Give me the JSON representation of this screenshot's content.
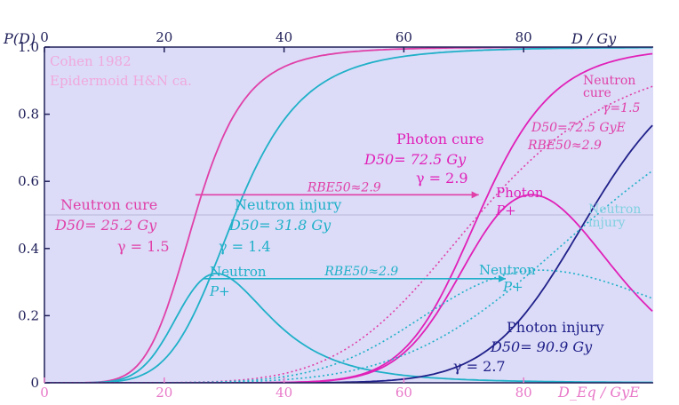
{
  "chart_data": {
    "type": "line",
    "yaxis": {
      "label": "P(D)",
      "range": [
        0,
        1.0
      ],
      "ticks": [
        "0",
        "0.2",
        "0.4",
        "0.6",
        "0.8",
        "1.0"
      ],
      "tick_values": [
        0,
        0.2,
        0.4,
        0.6,
        0.8,
        1.0
      ]
    },
    "x_top": {
      "label": "D / Gy",
      "ticks": [
        "0",
        "20",
        "40",
        "60",
        "80"
      ],
      "tick_values": [
        0,
        20,
        40,
        60,
        80
      ]
    },
    "x_bottom": {
      "label": "D_Eq / GyE",
      "ticks": [
        "0",
        "20",
        "40",
        "60",
        "80"
      ],
      "tick_values": [
        0,
        20,
        40,
        60,
        80
      ]
    },
    "reference_line": {
      "y": 0.5
    },
    "colors": {
      "neutron_cure": "#e040a8",
      "neutron_injury": "#20b0c8",
      "photon_cure": "#e020b8",
      "photon_injury": "#20208a",
      "plot_bg": "#dcdcf8"
    },
    "series": [
      {
        "name": "Neutron cure",
        "color": "#e040a8",
        "kind": "logistic",
        "d50": 25.2,
        "gamma": 1.5
      },
      {
        "name": "Neutron injury",
        "color": "#20b0c8",
        "kind": "logistic",
        "d50": 31.8,
        "gamma": 1.4
      },
      {
        "name": "Neutron P+",
        "color": "#20b0c8",
        "kind": "p_plus",
        "cure_d50": 25.2,
        "cure_gamma": 1.5,
        "inj_d50": 31.8,
        "inj_gamma": 1.4
      },
      {
        "name": "Photon cure",
        "color": "#e020b8",
        "kind": "logistic",
        "d50": 72.5,
        "gamma": 2.9
      },
      {
        "name": "Photon injury",
        "color": "#20208a",
        "kind": "logistic",
        "d50": 90.9,
        "gamma": 2.7
      },
      {
        "name": "Photon P+",
        "color": "#e020b8",
        "kind": "p_plus",
        "cure_d50": 72.5,
        "cure_gamma": 2.9,
        "inj_d50": 90.9,
        "inj_gamma": 2.7
      },
      {
        "name": "Neutron cure (scaled RBE 2.9)",
        "color": "#e040a8",
        "kind": "logistic_dotted",
        "d50": 72.5,
        "gamma": 1.5
      },
      {
        "name": "Neutron injury (scaled RBE 2.9)",
        "color": "#20b0c8",
        "kind": "logistic_dotted",
        "d50": 92.2,
        "gamma": 1.4
      },
      {
        "name": "Neutron P+ (scaled RBE 2.9)",
        "color": "#20b0c8",
        "kind": "p_plus_dotted",
        "cure_d50": 72.5,
        "cure_gamma": 1.5,
        "inj_d50": 92.2,
        "inj_gamma": 1.4
      }
    ],
    "rbe_arrows": [
      {
        "label": "RBE50≈2.9",
        "y": 0.56,
        "x_from": 25.2,
        "x_to": 72.5,
        "color": "#e040a8"
      },
      {
        "label": "RBE50≈2.9",
        "y": 0.31,
        "x_from": 26.5,
        "x_to": 77.0,
        "color": "#20b0c8"
      }
    ],
    "annotations": {
      "source_line1": "Cohen 1982",
      "source_line2": "Epidermoid H&N ca.",
      "neutron_cure_title": "Neutron cure",
      "neutron_cure_d50": "D50= 25.2 Gy",
      "neutron_cure_gamma": "γ = 1.5",
      "neutron_injury_title": "Neutron injury",
      "neutron_injury_d50": "D50= 31.8 Gy",
      "neutron_injury_gamma": "γ = 1.4",
      "neutron_pplus_title": "Neutron",
      "neutron_pplus_sub": "P+",
      "photon_cure_title": "Photon cure",
      "photon_cure_d50": "D50= 72.5 Gy",
      "photon_cure_gamma": "γ = 2.9",
      "photon_pplus_title": "Photon",
      "photon_pplus_sub": "P+",
      "photon_injury_title": "Photon injury",
      "photon_injury_d50": "D50= 90.9 Gy",
      "photon_injury_gamma": "γ = 2.7",
      "neutron_scaled_pplus_title": "Neutron",
      "neutron_scaled_pplus_sub": "P+",
      "neutron_scaled_cure_title1": "Neutron",
      "neutron_scaled_cure_title2": "cure",
      "neutron_scaled_cure_gamma": "γ=1.5",
      "neutron_scaled_cure_d50": "D50=72.5 GyE",
      "neutron_scaled_cure_rbe": "RBE50≈2.9",
      "neutron_scaled_injury_title1": "Neutron",
      "neutron_scaled_injury_title2": "injury"
    }
  }
}
